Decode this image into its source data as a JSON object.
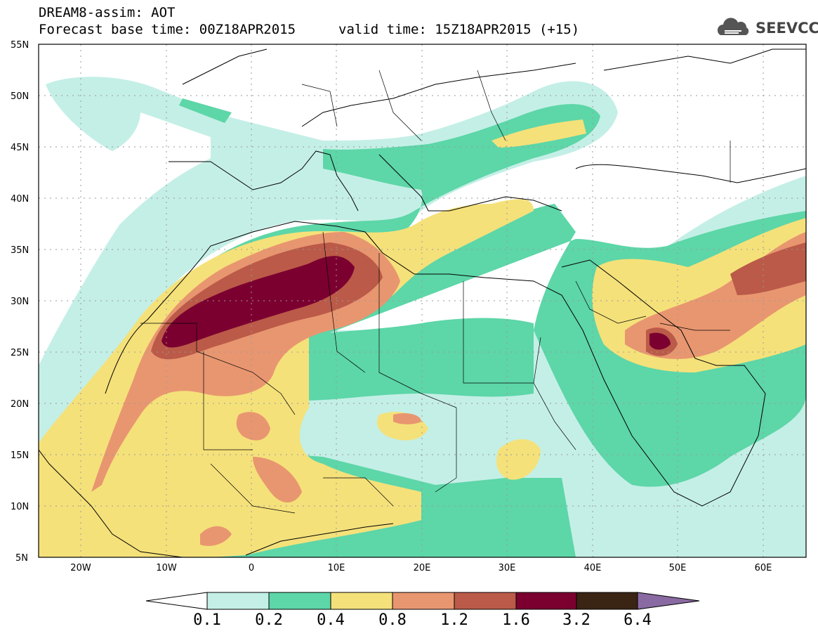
{
  "header": {
    "title": "DREAM8-assim: AOT",
    "base_time": "Forecast base time: 00Z18APR2015",
    "valid_time": "valid time: 15Z18APR2015 (+15)"
  },
  "logo": {
    "text": "SEEVCCC",
    "icon": "cloud-logo-icon"
  },
  "chart_data": {
    "type": "heatmap",
    "title": "DREAM8-assim: AOT",
    "x_ticks": [
      "20W",
      "10W",
      "0",
      "10E",
      "20E",
      "30E",
      "40E",
      "50E",
      "60E"
    ],
    "y_ticks": [
      "55N",
      "50N",
      "45N",
      "40N",
      "35N",
      "30N",
      "25N",
      "20N",
      "15N",
      "10N",
      "5N"
    ],
    "lon_range": [
      -25,
      65
    ],
    "lat_range": [
      5,
      55
    ],
    "grid": true,
    "colorbar": {
      "levels": [
        "0.1",
        "0.2",
        "0.4",
        "0.8",
        "1.2",
        "1.6",
        "3.2",
        "6.4"
      ],
      "colors": [
        "#c4efe6",
        "#5dd6a8",
        "#f5e17a",
        "#e89670",
        "#bb5a48",
        "#7b0030",
        "#3a2414",
        "#8a6aa2"
      ]
    }
  }
}
